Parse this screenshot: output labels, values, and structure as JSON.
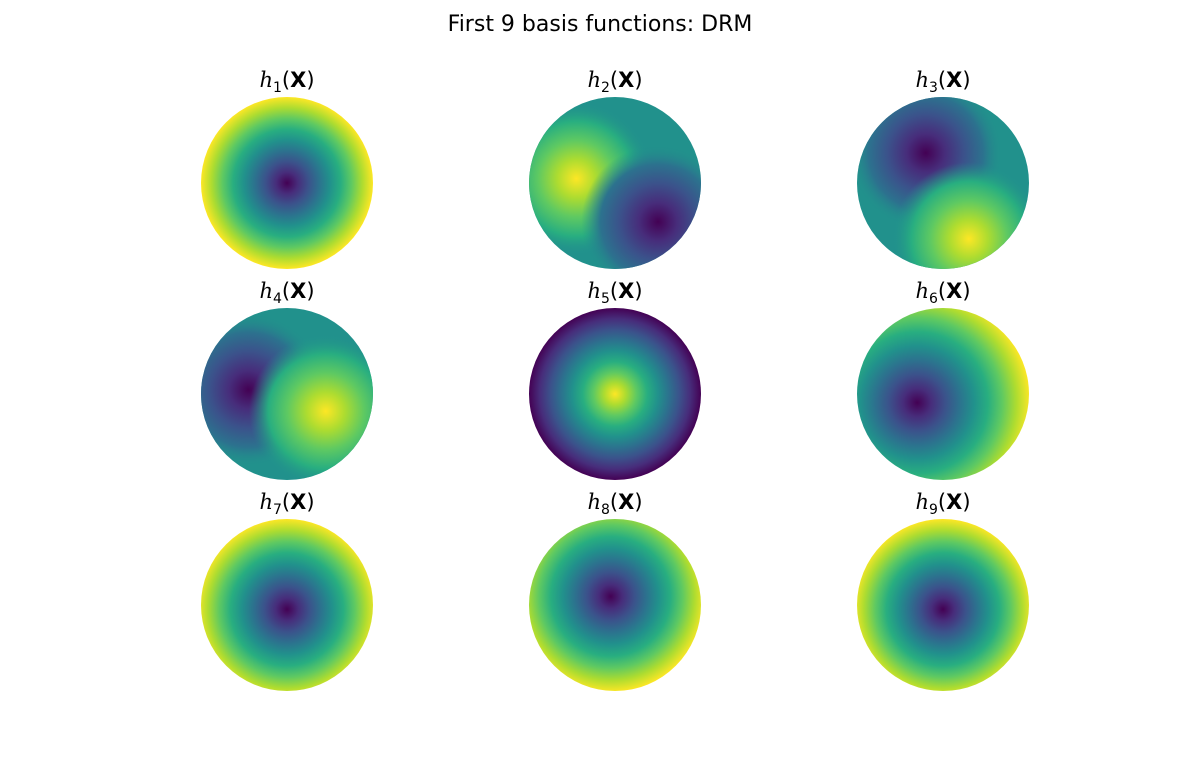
{
  "figure": {
    "title": "First 9 basis functions: DRM"
  },
  "chart_data": {
    "type": "heatmap",
    "title": "First 9 basis functions: DRM",
    "colormap": "viridis",
    "colormap_stops": [
      "#440154",
      "#472d7b",
      "#3b528b",
      "#2c728e",
      "#21918c",
      "#28ae80",
      "#5ec962",
      "#addc30",
      "#fde725"
    ],
    "domain": "unit disk",
    "panels": [
      {
        "label_base": "h",
        "label_sub": "1",
        "label_arg": "X",
        "label_open": "(",
        "label_close": ")",
        "field": "radial-min",
        "features": [
          {
            "kind": "min",
            "x": 0.0,
            "y": 0.0
          }
        ]
      },
      {
        "label_base": "h",
        "label_sub": "2",
        "label_arg": "X",
        "label_open": "(",
        "label_close": ")",
        "field": "dipole",
        "features": [
          {
            "kind": "max",
            "x": -0.45,
            "y": 0.05
          },
          {
            "kind": "min",
            "x": 0.5,
            "y": -0.45
          }
        ]
      },
      {
        "label_base": "h",
        "label_sub": "3",
        "label_arg": "X",
        "label_open": "(",
        "label_close": ")",
        "field": "dipole",
        "features": [
          {
            "kind": "min",
            "x": -0.2,
            "y": 0.35
          },
          {
            "kind": "max",
            "x": 0.3,
            "y": -0.65
          }
        ]
      },
      {
        "label_base": "h",
        "label_sub": "4",
        "label_arg": "X",
        "label_open": "(",
        "label_close": ")",
        "field": "dipole",
        "features": [
          {
            "kind": "min",
            "x": -0.45,
            "y": 0.05
          },
          {
            "kind": "max",
            "x": 0.45,
            "y": -0.2
          }
        ]
      },
      {
        "label_base": "h",
        "label_sub": "5",
        "label_arg": "X",
        "label_open": "(",
        "label_close": ")",
        "field": "radial-max",
        "features": [
          {
            "kind": "max",
            "x": 0.0,
            "y": 0.0
          }
        ]
      },
      {
        "label_base": "h",
        "label_sub": "6",
        "label_arg": "X",
        "label_open": "(",
        "label_close": ")",
        "field": "radial-min",
        "features": [
          {
            "kind": "min",
            "x": -0.3,
            "y": -0.1
          }
        ]
      },
      {
        "label_base": "h",
        "label_sub": "7",
        "label_arg": "X",
        "label_open": "(",
        "label_close": ")",
        "field": "radial-min",
        "features": [
          {
            "kind": "min",
            "x": 0.0,
            "y": -0.05
          }
        ]
      },
      {
        "label_base": "h",
        "label_sub": "8",
        "label_arg": "X",
        "label_open": "(",
        "label_close": ")",
        "field": "radial-min",
        "features": [
          {
            "kind": "min",
            "x": -0.05,
            "y": 0.1
          }
        ]
      },
      {
        "label_base": "h",
        "label_sub": "9",
        "label_arg": "X",
        "label_open": "(",
        "label_close": ")",
        "field": "radial-min",
        "features": [
          {
            "kind": "min",
            "x": 0.0,
            "y": -0.05
          }
        ]
      }
    ]
  }
}
